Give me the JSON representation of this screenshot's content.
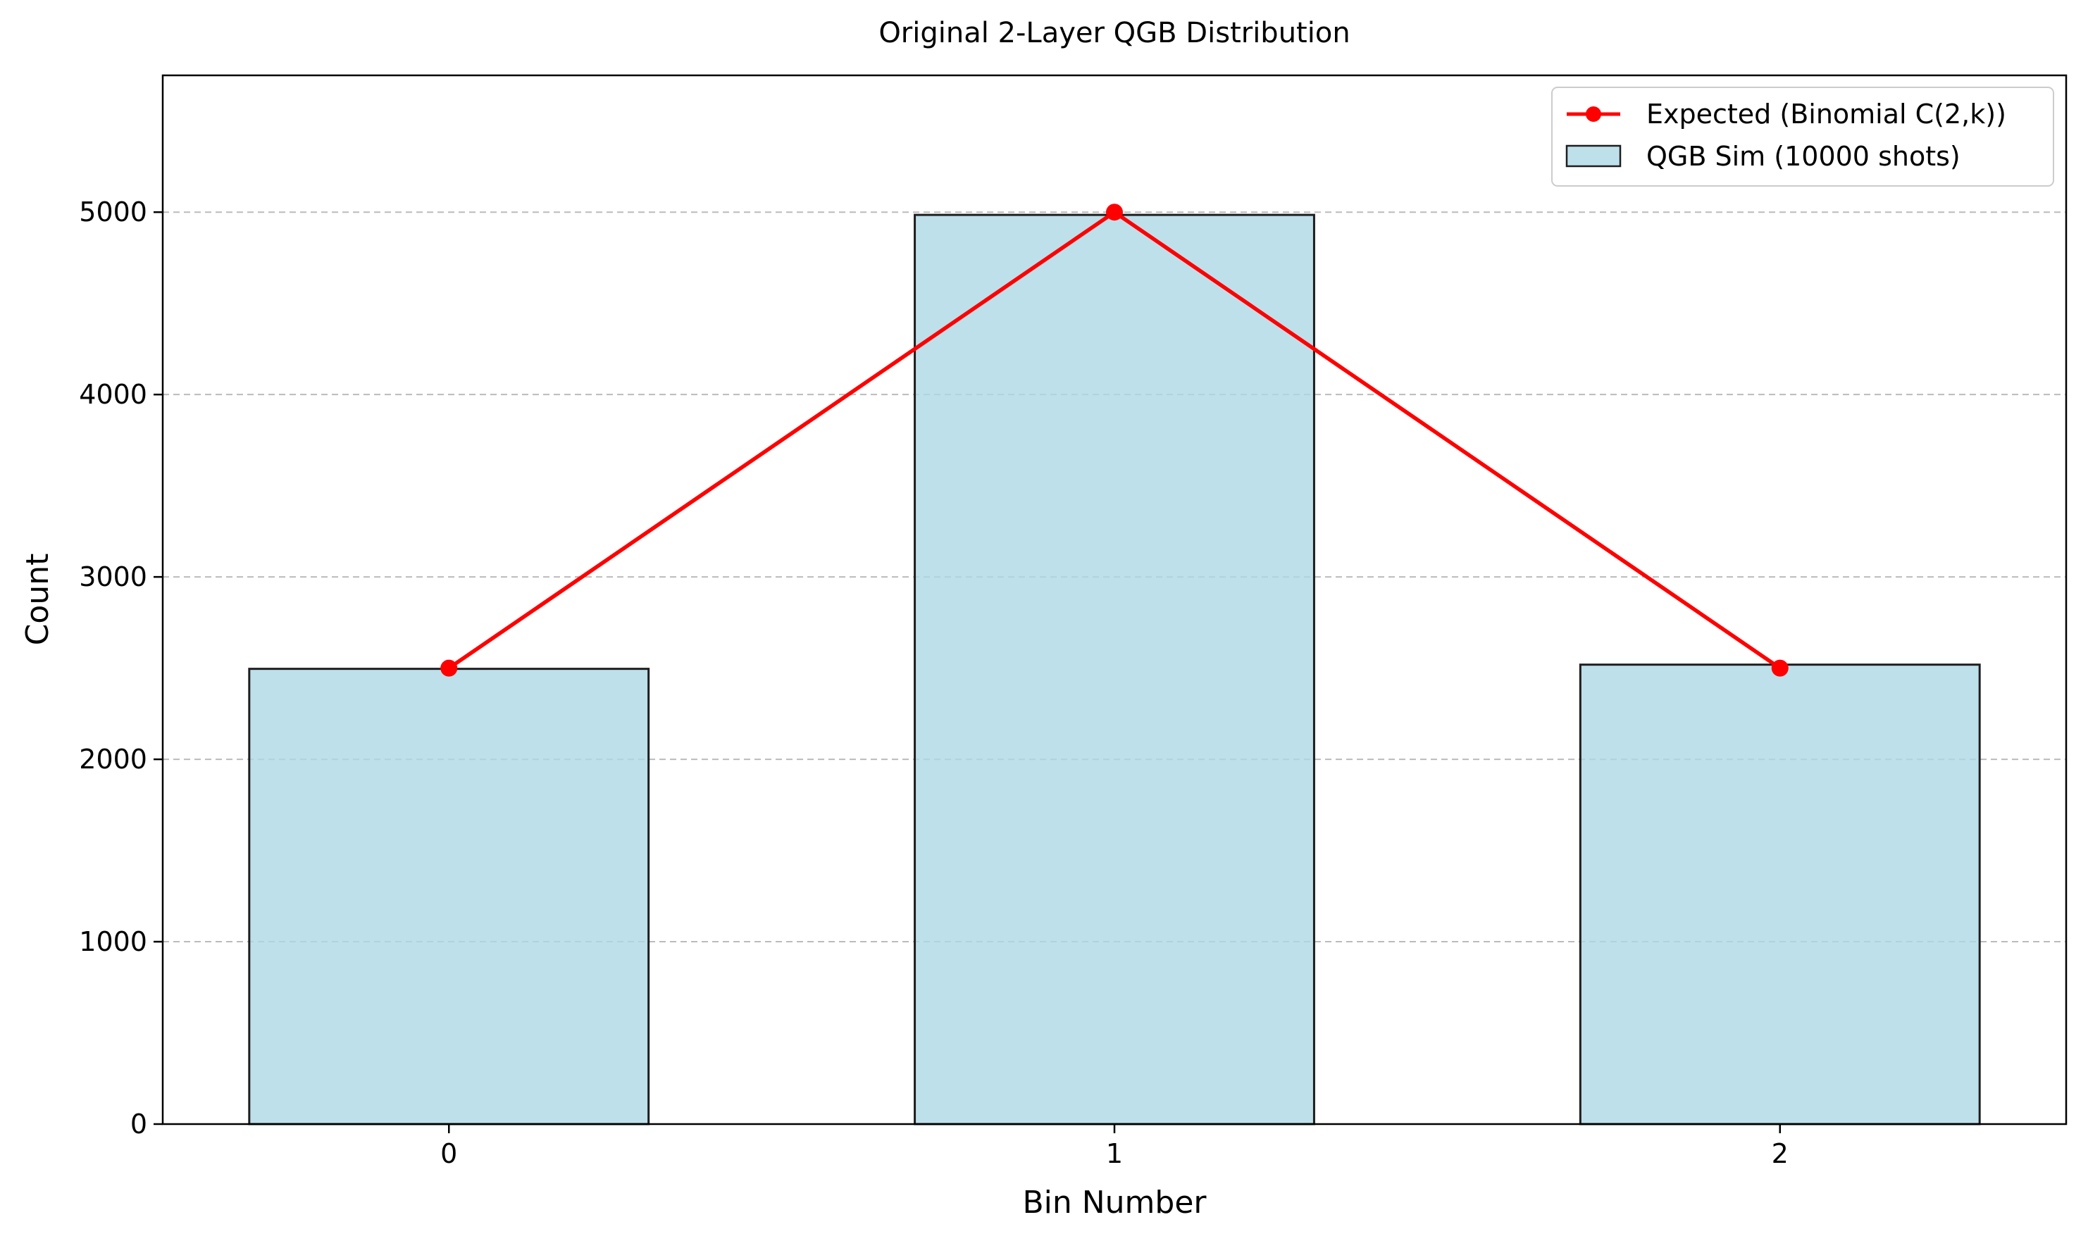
{
  "chart_data": {
    "type": "bar",
    "title": "Original 2-Layer QGB Distribution",
    "xlabel": "Bin Number",
    "ylabel": "Count",
    "categories": [
      "0",
      "1",
      "2"
    ],
    "x": [
      0,
      1,
      2
    ],
    "xlim": [
      -0.43,
      2.43
    ],
    "ylim": [
      0,
      5750
    ],
    "yticks": [
      0,
      1000,
      2000,
      3000,
      4000,
      5000
    ],
    "grid": "horizontal-dashed",
    "legend_position": "top-right",
    "series": [
      {
        "name": "QGB Sim (10000 shots)",
        "kind": "bar",
        "values": [
          2496,
          4985,
          2519
        ],
        "color": "#add8e6",
        "edge_color": "#1e1e1e"
      },
      {
        "name": "Expected (Binomial C(2,k))",
        "kind": "line",
        "marker": "circle",
        "values": [
          2500,
          5000,
          2500
        ],
        "color": "#ff0000"
      }
    ]
  }
}
